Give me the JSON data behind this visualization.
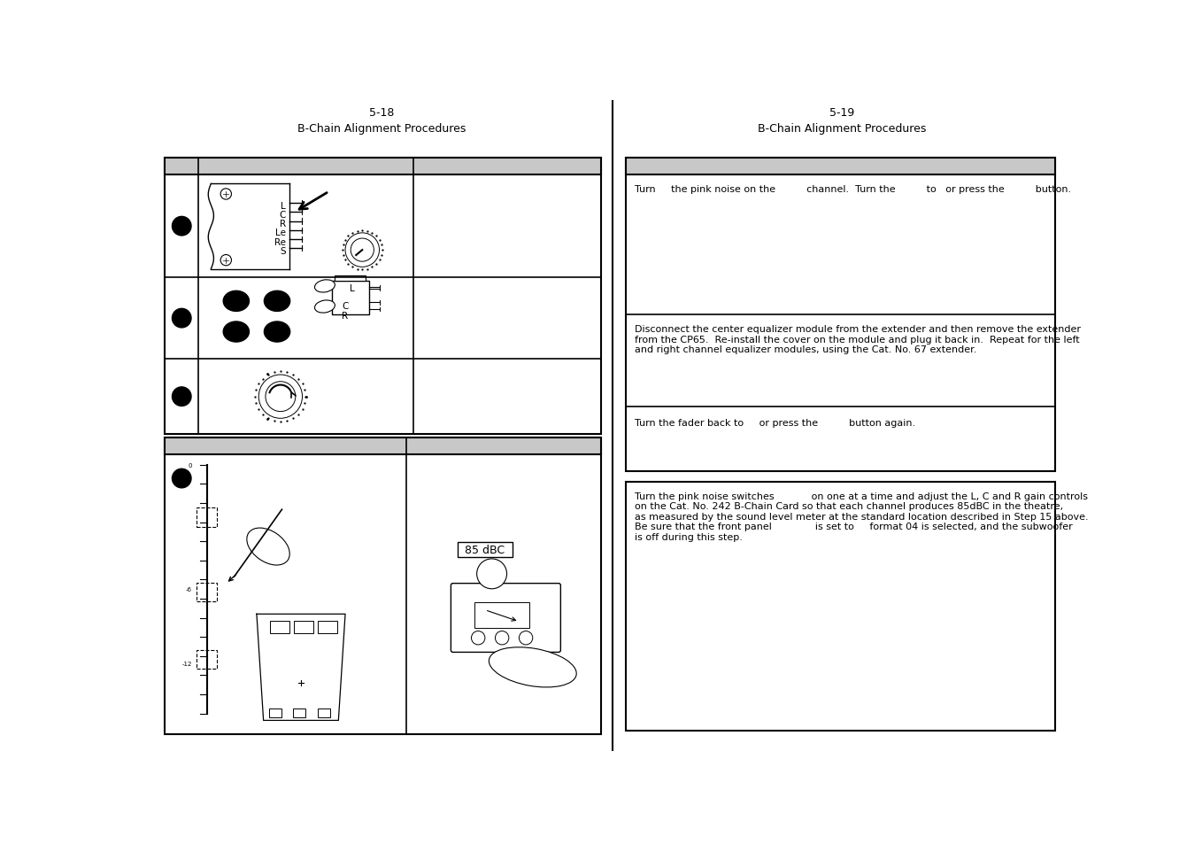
{
  "page_left_number": "5-18",
  "page_right_number": "5-19",
  "left_title": "B-Chain Alignment Procedures",
  "right_title": "B-Chain Procedures",
  "bg_color": "#ffffff",
  "header_fill": "#c8c8c8",
  "right_row1_text": "Turn     the pink noise on the          channel.  Turn the          to   or press the          button.",
  "right_row2_text1": "Disconnect the center equalizer module from the extender and then remove the extender",
  "right_row2_text2": "from the CP65.  Re-install the cover on the module and plug it back in.  Repeat for the left",
  "right_row2_text3": "and right channel equalizer modules, using the Cat. No. 67 extender.",
  "right_row3_text": "Turn the fader back to     or press the          button again.",
  "right_row4_text1": "Turn the pink noise switches            on one at a time and adjust the L, C and R gain controls",
  "right_row4_text2": "on the Cat. No. 242 B-Chain Card so that each channel produces 85dBC in the theatre,",
  "right_row4_text3": "as measured by the sound level meter at the standard location described in Step 15 above.",
  "right_row4_text4": "Be sure that the front panel              is set to     format 04 is selected, and the subwoofer",
  "right_row4_text5": "is off during this step.",
  "label_85dbc": "85 dBC"
}
